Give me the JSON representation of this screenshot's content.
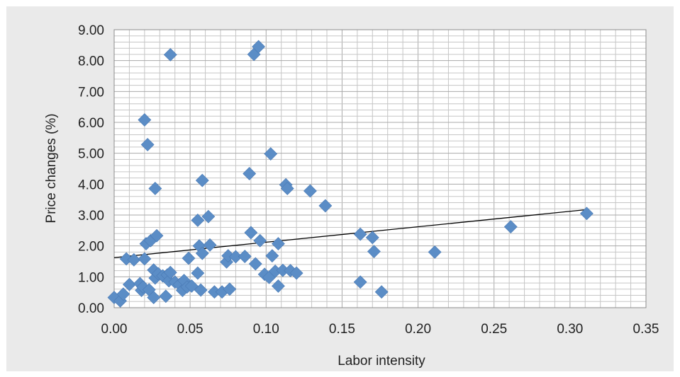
{
  "chart_data": {
    "type": "scatter",
    "title": "",
    "xlabel": "Labor intensity",
    "ylabel": "Price changes (%)",
    "xlim": [
      0,
      0.35
    ],
    "ylim": [
      0,
      9
    ],
    "x_ticks": [
      0,
      0.05,
      0.1,
      0.15,
      0.2,
      0.25,
      0.3,
      0.35
    ],
    "x_tick_labels": [
      "0.00",
      "0.05",
      "0.10",
      "0.15",
      "0.20",
      "0.25",
      "0.30",
      "0.35"
    ],
    "y_ticks": [
      0,
      1,
      2,
      3,
      4,
      5,
      6,
      7,
      8,
      9
    ],
    "y_tick_labels": [
      "0.00",
      "1.00",
      "2.00",
      "3.00",
      "4.00",
      "5.00",
      "6.00",
      "7.00",
      "8.00",
      "9.00"
    ],
    "grid": true,
    "legend": "none",
    "marker_color": "#5b8dc6",
    "trendline": {
      "type": "linear",
      "points": [
        [
          0.0,
          1.62
        ],
        [
          0.312,
          3.18
        ]
      ],
      "color": "#000000"
    },
    "series": [
      {
        "points": [
          [
            0.0,
            0.33
          ],
          [
            0.004,
            0.22
          ],
          [
            0.006,
            0.44
          ],
          [
            0.008,
            1.58
          ],
          [
            0.01,
            0.75
          ],
          [
            0.013,
            1.55
          ],
          [
            0.017,
            0.78
          ],
          [
            0.018,
            0.56
          ],
          [
            0.019,
            0.67
          ],
          [
            0.02,
            1.58
          ],
          [
            0.02,
            6.08
          ],
          [
            0.021,
            2.07
          ],
          [
            0.022,
            5.28
          ],
          [
            0.023,
            0.58
          ],
          [
            0.024,
            2.17
          ],
          [
            0.026,
            0.33
          ],
          [
            0.026,
            1.22
          ],
          [
            0.027,
            3.86
          ],
          [
            0.027,
            0.96
          ],
          [
            0.028,
            2.33
          ],
          [
            0.029,
            1.1
          ],
          [
            0.032,
            1.03
          ],
          [
            0.034,
            0.37
          ],
          [
            0.035,
            1.06
          ],
          [
            0.036,
            0.87
          ],
          [
            0.037,
            8.19
          ],
          [
            0.037,
            1.14
          ],
          [
            0.04,
            0.83
          ],
          [
            0.043,
            0.75
          ],
          [
            0.045,
            0.56
          ],
          [
            0.046,
            0.88
          ],
          [
            0.048,
            0.67
          ],
          [
            0.049,
            1.6
          ],
          [
            0.051,
            0.7
          ],
          [
            0.055,
            1.12
          ],
          [
            0.055,
            2.83
          ],
          [
            0.056,
            2.0
          ],
          [
            0.057,
            0.57
          ],
          [
            0.058,
            1.76
          ],
          [
            0.058,
            4.12
          ],
          [
            0.062,
            2.95
          ],
          [
            0.063,
            2.03
          ],
          [
            0.066,
            0.51
          ],
          [
            0.071,
            0.51
          ],
          [
            0.074,
            1.48
          ],
          [
            0.075,
            1.68
          ],
          [
            0.076,
            0.6
          ],
          [
            0.08,
            1.65
          ],
          [
            0.086,
            1.66
          ],
          [
            0.089,
            4.34
          ],
          [
            0.09,
            2.43
          ],
          [
            0.092,
            8.2
          ],
          [
            0.093,
            1.42
          ],
          [
            0.095,
            8.45
          ],
          [
            0.096,
            2.17
          ],
          [
            0.099,
            1.08
          ],
          [
            0.102,
            0.98
          ],
          [
            0.103,
            4.98
          ],
          [
            0.104,
            1.68
          ],
          [
            0.106,
            1.18
          ],
          [
            0.108,
            0.7
          ],
          [
            0.108,
            2.07
          ],
          [
            0.111,
            1.21
          ],
          [
            0.113,
            3.98
          ],
          [
            0.114,
            3.86
          ],
          [
            0.116,
            1.2
          ],
          [
            0.12,
            1.12
          ],
          [
            0.129,
            3.78
          ],
          [
            0.139,
            3.3
          ],
          [
            0.162,
            2.38
          ],
          [
            0.162,
            0.83
          ],
          [
            0.17,
            2.27
          ],
          [
            0.171,
            1.82
          ],
          [
            0.176,
            0.51
          ],
          [
            0.211,
            1.8
          ],
          [
            0.261,
            2.62
          ],
          [
            0.311,
            3.05
          ]
        ]
      }
    ]
  }
}
